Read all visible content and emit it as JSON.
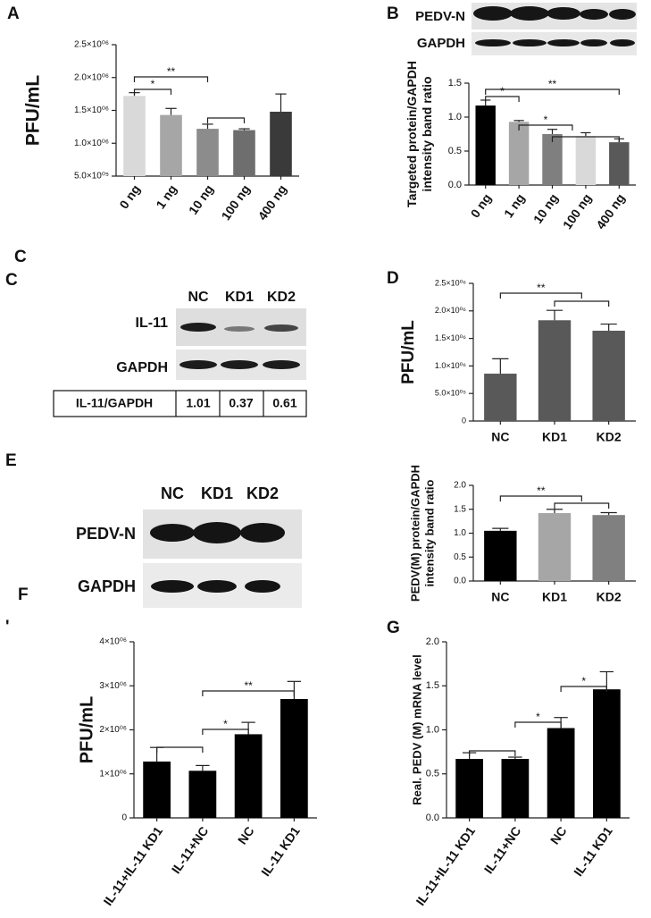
{
  "panel_labels": [
    "A",
    "B",
    "C",
    "C",
    "D",
    "E",
    "F",
    "'",
    "G"
  ],
  "blots": {
    "b": {
      "rows": [
        "PEDV-N",
        "GAPDH"
      ]
    },
    "c": {
      "lanes": [
        "NC",
        "KD1",
        "KD2"
      ],
      "rows": [
        "IL-11",
        "GAPDH"
      ],
      "table": [
        "IL-11/GAPDH",
        "1.01",
        "0.37",
        "0.61"
      ]
    },
    "e": {
      "lanes": [
        "NC",
        "KD1",
        "KD2"
      ],
      "rows": [
        "PEDV-N",
        "GAPDH"
      ]
    }
  },
  "chart_data": [
    {
      "type": "bar",
      "ylabel": [
        "PFU/mL"
      ],
      "categories": [
        "0 ng",
        "1 ng",
        "10 ng",
        "100 ng",
        "400 ng"
      ],
      "values": [
        1720000,
        1430000,
        1220000,
        1200000,
        1480000
      ],
      "errors": [
        50000,
        100000,
        70000,
        20000,
        270000
      ],
      "colors": [
        "#d9d9d9",
        "#a6a6a6",
        "#8c8c8c",
        "#6e6e6e",
        "#3a3a3a"
      ],
      "ylim": [
        500000,
        2500000
      ],
      "yticks": [
        {
          "value": 500000,
          "label": "5.0×10⁰⁵"
        },
        {
          "value": 1000000,
          "label": "1.0×10⁰⁶"
        },
        {
          "value": 1500000,
          "label": "1.5×10⁰⁶"
        },
        {
          "value": 2000000,
          "label": "2.0×10⁰⁶"
        },
        {
          "value": 2500000,
          "label": "2.5×10⁰⁶"
        }
      ],
      "annotations": [
        "*",
        "**"
      ]
    },
    {
      "type": "bar",
      "ylabel": [
        "Targeted protein/GAPDH",
        "intensity band ratio"
      ],
      "categories": [
        "0 ng",
        "1 ng",
        "10 ng",
        "100 ng",
        "400 ng"
      ],
      "values": [
        1.17,
        0.93,
        0.75,
        0.72,
        0.63
      ],
      "errors": [
        0.08,
        0.02,
        0.07,
        0.05,
        0.05
      ],
      "colors": [
        "#000000",
        "#a6a6a6",
        "#7f7f7f",
        "#d9d9d9",
        "#595959"
      ],
      "ylim": [
        0,
        1.5
      ],
      "yticks": [
        {
          "value": 0,
          "label": "0.0"
        },
        0.5,
        {
          "value": 1,
          "label": "1.0"
        },
        1.5
      ],
      "annotations": [
        "*",
        "**",
        "*"
      ]
    },
    {
      "type": "bar",
      "ylabel": [
        "PFU/mL"
      ],
      "categories": [
        "NC",
        "KD1",
        "KD2"
      ],
      "values": [
        860000,
        1830000,
        1640000
      ],
      "errors": [
        270000,
        180000,
        120000
      ],
      "colors": [
        "#595959",
        "#595959",
        "#595959"
      ],
      "ylim": [
        0,
        2500000
      ],
      "yticks": [
        0,
        {
          "value": 500000,
          "label": "5.0×10⁰⁵"
        },
        {
          "value": 1000000,
          "label": "1.0×10⁰⁶"
        },
        {
          "value": 1500000,
          "label": "1.5×10⁰⁶"
        },
        {
          "value": 2000000,
          "label": "2.0×10⁰⁶"
        },
        {
          "value": 2500000,
          "label": "2.5×10⁰⁶"
        }
      ],
      "annotations": [
        "**"
      ]
    },
    {
      "type": "bar",
      "ylabel": [
        "PEDV(M) protein/GAPDH",
        "intensity band ratio"
      ],
      "categories": [
        "NC",
        "KD1",
        "KD2"
      ],
      "values": [
        1.05,
        1.42,
        1.38
      ],
      "errors": [
        0.05,
        0.08,
        0.05
      ],
      "colors": [
        "#000000",
        "#a6a6a6",
        "#808080"
      ],
      "ylim": [
        0,
        2
      ],
      "yticks": [
        {
          "value": 0,
          "label": "0.0"
        },
        0.5,
        {
          "value": 1,
          "label": "1.0"
        },
        1.5,
        {
          "value": 2,
          "label": "2.0"
        }
      ],
      "annotations": [
        "**"
      ]
    },
    {
      "type": "bar",
      "ylabel": [
        "PFU/mL"
      ],
      "categories": [
        "IL-11+IL-11 KD1",
        "IL-11+NC",
        "NC",
        "IL-11 KD1"
      ],
      "values": [
        1280000,
        1070000,
        1900000,
        2700000
      ],
      "errors": [
        320000,
        120000,
        270000,
        400000
      ],
      "colors": [
        "#000000",
        "#000000",
        "#000000",
        "#000000"
      ],
      "ylim": [
        0,
        4000000
      ],
      "yticks": [
        0,
        {
          "value": 1000000,
          "label": "1×10⁰⁶"
        },
        {
          "value": 2000000,
          "label": "2×10⁰⁶"
        },
        {
          "value": 3000000,
          "label": "3×10⁰⁶"
        },
        {
          "value": 4000000,
          "label": "4×10⁰⁶"
        }
      ],
      "annotations": [
        "*",
        "**"
      ]
    },
    {
      "type": "bar",
      "ylabel": [
        "Real. PEDV (M) mRNA level"
      ],
      "categories": [
        "IL-11+IL-11 KD1",
        "IL-11+NC",
        "NC",
        "IL-11 KD1"
      ],
      "values": [
        0.67,
        0.67,
        1.02,
        1.46
      ],
      "errors": [
        0.07,
        0.02,
        0.12,
        0.2
      ],
      "colors": [
        "#000000",
        "#000000",
        "#000000",
        "#000000"
      ],
      "ylim": [
        0,
        2
      ],
      "yticks": [
        {
          "value": 0,
          "label": "0.0"
        },
        0.5,
        {
          "value": 1,
          "label": "1.0"
        },
        1.5,
        {
          "value": 2,
          "label": "2.0"
        }
      ],
      "annotations": [
        "*",
        "*"
      ]
    }
  ]
}
